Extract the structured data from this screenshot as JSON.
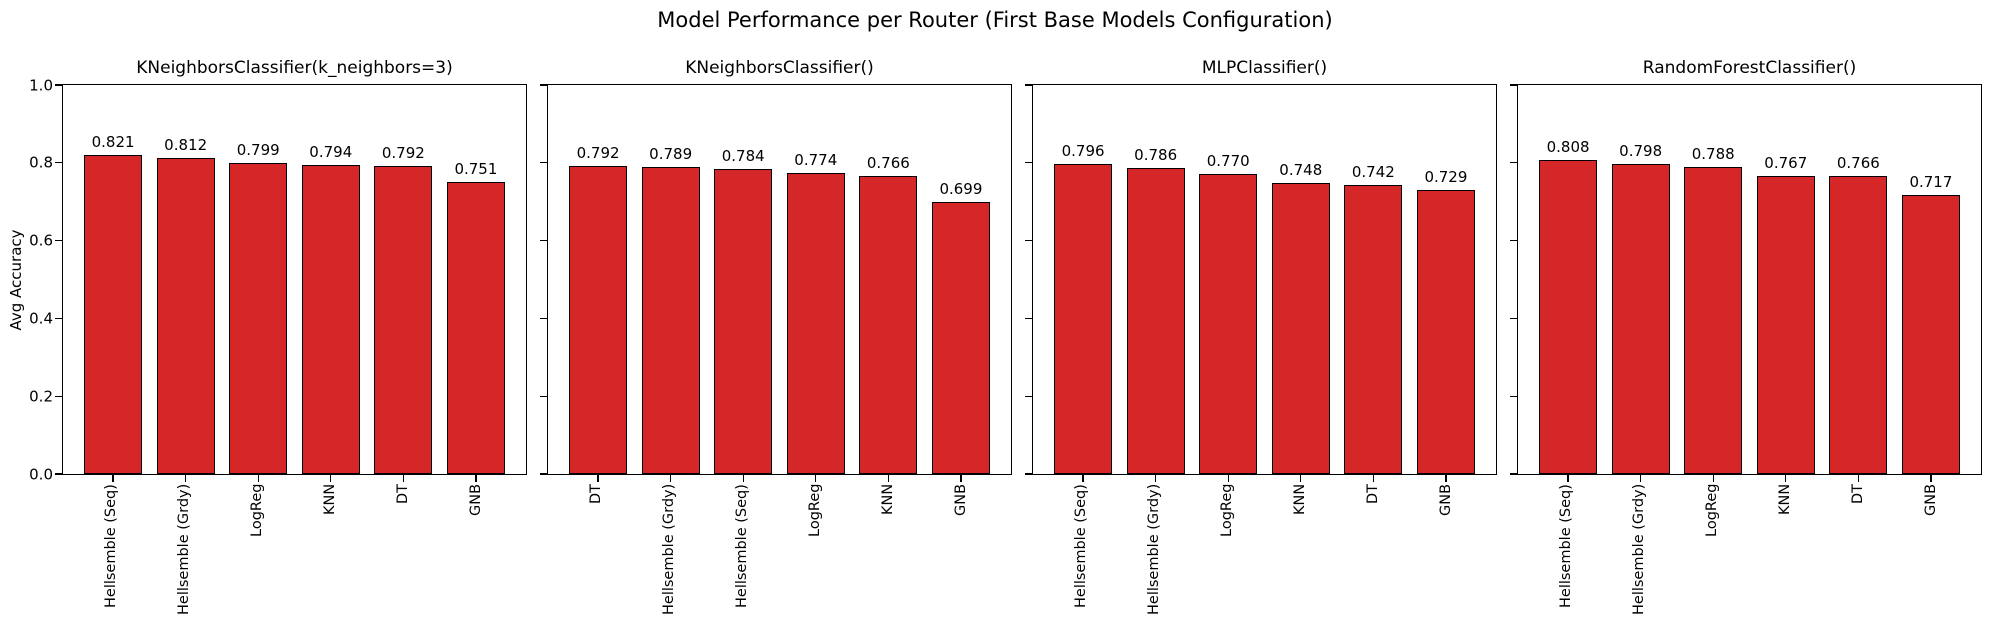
{
  "figure": {
    "title": "Model Performance per Router (First Base Models Configuration)",
    "ylabel": "Avg Accuracy",
    "yticks": [
      "0.0",
      "0.2",
      "0.4",
      "0.6",
      "0.8",
      "1.0"
    ],
    "bar_color": "#d62728",
    "bar_edge_color": "#000000"
  },
  "chart_data": [
    {
      "type": "bar",
      "title": "KNeighborsClassifier(k_neighbors=3)",
      "categories": [
        "Hellsemble (Seq)",
        "Hellsemble (Grdy)",
        "LogReg",
        "KNN",
        "DT",
        "GNB"
      ],
      "values": [
        0.821,
        0.812,
        0.799,
        0.794,
        0.792,
        0.751
      ],
      "xlabel": "",
      "ylabel": "Avg Accuracy",
      "ylim": [
        0.0,
        1.0
      ],
      "grid": false,
      "legend": false
    },
    {
      "type": "bar",
      "title": "KNeighborsClassifier()",
      "categories": [
        "DT",
        "Hellsemble (Grdy)",
        "Hellsemble (Seq)",
        "LogReg",
        "KNN",
        "GNB"
      ],
      "values": [
        0.792,
        0.789,
        0.784,
        0.774,
        0.766,
        0.699
      ],
      "xlabel": "",
      "ylabel": "",
      "ylim": [
        0.0,
        1.0
      ],
      "grid": false,
      "legend": false
    },
    {
      "type": "bar",
      "title": "MLPClassifier()",
      "categories": [
        "Hellsemble (Seq)",
        "Hellsemble (Grdy)",
        "LogReg",
        "KNN",
        "DT",
        "GNB"
      ],
      "values": [
        0.796,
        0.786,
        0.77,
        0.748,
        0.742,
        0.729
      ],
      "xlabel": "",
      "ylabel": "",
      "ylim": [
        0.0,
        1.0
      ],
      "grid": false,
      "legend": false
    },
    {
      "type": "bar",
      "title": "RandomForestClassifier()",
      "categories": [
        "Hellsemble (Seq)",
        "Hellsemble (Grdy)",
        "LogReg",
        "KNN",
        "DT",
        "GNB"
      ],
      "values": [
        0.808,
        0.798,
        0.788,
        0.767,
        0.766,
        0.717
      ],
      "xlabel": "",
      "ylabel": "",
      "ylim": [
        0.0,
        1.0
      ],
      "grid": false,
      "legend": false
    }
  ]
}
